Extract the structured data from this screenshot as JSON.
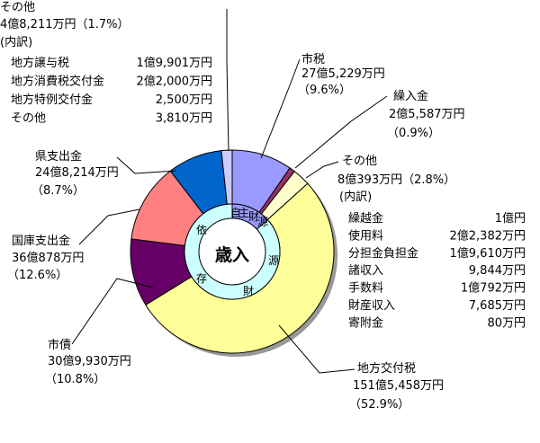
{
  "chart_data": {
    "type": "donut",
    "center_label": "歳入",
    "ring_labels": {
      "own": [
        "自",
        "主",
        "財",
        "源"
      ],
      "dependent": [
        "依",
        "存",
        "財",
        "源"
      ]
    },
    "categories": [
      "市税",
      "繰入金",
      "その他",
      "地方交付税",
      "市債",
      "国庫支出金",
      "県支出金",
      "その他"
    ],
    "labels": [
      {
        "name": "市税",
        "amount": "27億5,229万円",
        "pct": "（9.6%）"
      },
      {
        "name": "繰入金",
        "amount": "2億5,587万円",
        "pct": "（0.9%）"
      },
      {
        "name": "その他",
        "amount": "8億393万円（2.8%）",
        "pct": ""
      },
      {
        "name": "地方交付税",
        "amount": "151億5,458万円",
        "pct": "（52.9%）"
      },
      {
        "name": "市債",
        "amount": "30億9,930万円",
        "pct": "（10.8%）"
      },
      {
        "name": "国庫支出金",
        "amount": "36億878万円",
        "pct": "（12.6%）"
      },
      {
        "name": "県支出金",
        "amount": "24億8,214万円",
        "pct": "（8.7%）"
      },
      {
        "name": "その他",
        "amount": "4億8,211万円（1.7%）",
        "pct": ""
      }
    ],
    "values": [
      9.6,
      0.9,
      2.8,
      52.9,
      10.8,
      12.6,
      8.7,
      1.7
    ],
    "colors": [
      "#9999ff",
      "#993366",
      "#ffffcc",
      "#ffff99",
      "#660066",
      "#ff8080",
      "#0066cc",
      "#ccccff"
    ],
    "own_revenue_pct": 13.3,
    "breakdown_other_own": {
      "header": "(内訳)",
      "items": [
        {
          "name": "繰越金",
          "amount": "1億円"
        },
        {
          "name": "使用料",
          "amount": "2億2,382万円"
        },
        {
          "name": "分担金負担金",
          "amount": "1億9,610万円"
        },
        {
          "name": "諸収入",
          "amount": "9,844万円"
        },
        {
          "name": "手数料",
          "amount": "1億792万円"
        },
        {
          "name": "財産収入",
          "amount": "7,685万円"
        },
        {
          "name": "寄附金",
          "amount": "80万円"
        }
      ]
    },
    "breakdown_other_dep": {
      "header": "(内訳)",
      "items": [
        {
          "name": "地方譲与税",
          "amount": "1億9,901万円"
        },
        {
          "name": "地方消費税交付金",
          "amount": "2億2,000万円"
        },
        {
          "name": "地方特例交付金",
          "amount": "2,500万円"
        },
        {
          "name": "その他",
          "amount": "3,810万円"
        }
      ]
    }
  }
}
